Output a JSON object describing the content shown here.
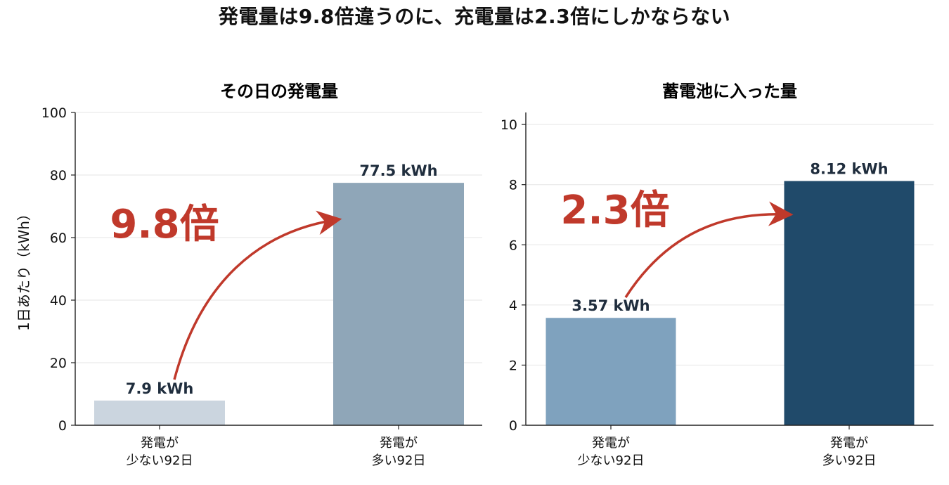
{
  "suptitle": "発電量は9.8倍違うのに、充電量は2.3倍にしかならない",
  "chart_data": [
    {
      "type": "bar",
      "title": "その日の発電量",
      "ylabel": "1日あたり（kWh）",
      "categories": [
        [
          "発電が",
          "少ない92日"
        ],
        [
          "発電が",
          "多い92日"
        ]
      ],
      "values": [
        7.9,
        77.5
      ],
      "value_labels": [
        "7.9 kWh",
        "77.5 kWh"
      ],
      "bar_colors": [
        "#cbd5df",
        "#8fa6b8"
      ],
      "ylim": [
        0,
        100
      ],
      "yticks": [
        0,
        20,
        40,
        60,
        80,
        100
      ],
      "grid": true,
      "annotation": "9.8倍"
    },
    {
      "type": "bar",
      "title": "蓄電池に入った量",
      "ylabel": "",
      "categories": [
        [
          "発電が",
          "少ない92日"
        ],
        [
          "発電が",
          "多い92日"
        ]
      ],
      "values": [
        3.57,
        8.12
      ],
      "value_labels": [
        "3.57 kWh",
        "8.12 kWh"
      ],
      "bar_colors": [
        "#7fa2be",
        "#204a6a"
      ],
      "ylim": [
        0,
        10.4
      ],
      "yticks": [
        0,
        2,
        4,
        6,
        8,
        10
      ],
      "grid": true,
      "annotation": "2.3倍"
    }
  ],
  "colors": {
    "accent": "#c0392b",
    "axis": "#222222",
    "grid": "#e6e6e6",
    "label": "#1f2d3d"
  }
}
